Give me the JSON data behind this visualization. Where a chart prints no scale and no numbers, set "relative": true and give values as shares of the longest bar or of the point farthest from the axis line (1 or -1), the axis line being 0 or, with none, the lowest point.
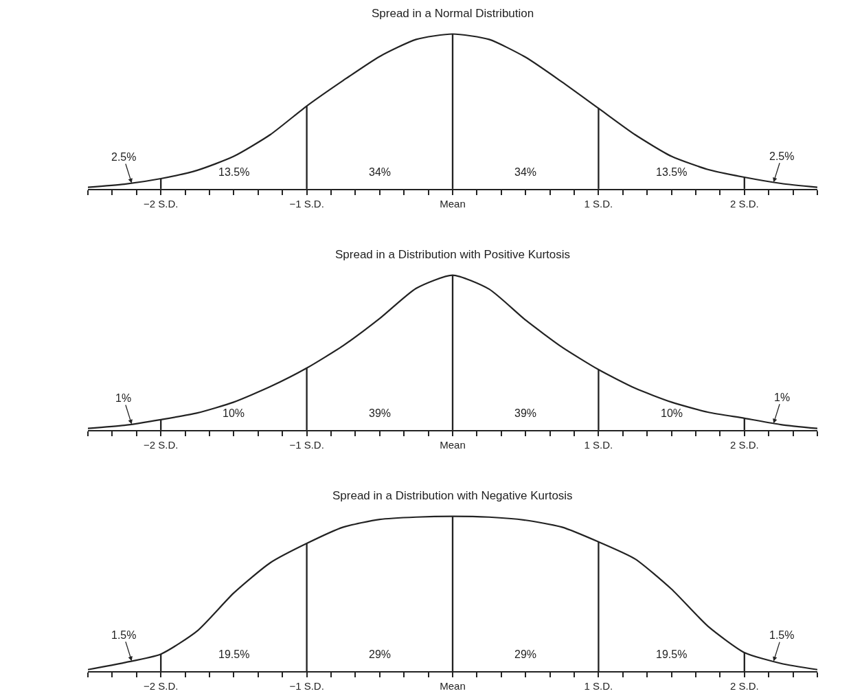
{
  "chart_data": [
    {
      "type": "line",
      "title": "Spread in a Normal Distribution",
      "relative": true,
      "series": [
        {
          "color": "#222222",
          "x": [
            -2.5,
            -2.25,
            -2,
            -1.75,
            -1.5,
            -1.25,
            -1,
            -0.75,
            -0.5,
            -0.25,
            0,
            0.25,
            0.5,
            0.75,
            1,
            1.25,
            1.5,
            1.75,
            2,
            2.25,
            2.5
          ],
          "values": [
            0.01,
            0.03,
            0.066,
            0.12,
            0.21,
            0.35,
            0.535,
            0.7,
            0.855,
            0.965,
            1,
            0.965,
            0.85,
            0.69,
            0.52,
            0.35,
            0.21,
            0.125,
            0.075,
            0.035,
            0.01
          ]
        },
        {
          "type": "bar",
          "color": "#222222",
          "x": [
            -2,
            -1,
            0,
            1,
            2
          ],
          "values": [
            0.066,
            0.535,
            1,
            0.52,
            0.075
          ]
        }
      ],
      "xlim": [
        -2.5,
        2.5
      ],
      "xticks": [
        {
          "value": -2.5,
          "label": null
        },
        {
          "value": -2.333,
          "label": null
        },
        {
          "value": -2.167,
          "label": null
        },
        {
          "value": -2,
          "label": "−2 S.D."
        },
        {
          "value": -1.833,
          "label": null
        },
        {
          "value": -1.667,
          "label": null
        },
        {
          "value": -1.5,
          "label": null
        },
        {
          "value": -1.333,
          "label": null
        },
        {
          "value": -1.167,
          "label": null
        },
        {
          "value": -1,
          "label": "−1 S.D."
        },
        {
          "value": -0.833,
          "label": null
        },
        {
          "value": -0.667,
          "label": null
        },
        {
          "value": -0.5,
          "label": null
        },
        {
          "value": -0.333,
          "label": null
        },
        {
          "value": -0.167,
          "label": null
        },
        {
          "value": 0,
          "label": "Mean"
        },
        {
          "value": 0.167,
          "label": null
        },
        {
          "value": 0.333,
          "label": null
        },
        {
          "value": 0.5,
          "label": null
        },
        {
          "value": 0.667,
          "label": null
        },
        {
          "value": 0.833,
          "label": null
        },
        {
          "value": 1,
          "label": "1 S.D."
        },
        {
          "value": 1.167,
          "label": null
        },
        {
          "value": 1.333,
          "label": null
        },
        {
          "value": 1.5,
          "label": null
        },
        {
          "value": 1.667,
          "label": null
        },
        {
          "value": 1.833,
          "label": null
        },
        {
          "value": 2,
          "label": "2 S.D."
        },
        {
          "value": 2.167,
          "label": null
        },
        {
          "value": 2.333,
          "label": null
        },
        {
          "value": 2.5,
          "label": null
        }
      ],
      "annotations": [
        "2.5%",
        "13.5%",
        "34%",
        "34%",
        "13.5%",
        "2.5%"
      ]
    },
    {
      "type": "line",
      "title": "Spread in a Distribution with Positive Kurtosis",
      "relative": true,
      "series": [
        {
          "color": "#222222",
          "x": [
            -2.5,
            -2.25,
            -2,
            -1.75,
            -1.5,
            -1.25,
            -1,
            -0.75,
            -0.5,
            -0.25,
            0,
            0.25,
            0.5,
            0.75,
            1,
            1.25,
            1.5,
            1.75,
            2,
            2.25,
            2.5
          ],
          "values": [
            0.01,
            0.03,
            0.067,
            0.11,
            0.18,
            0.28,
            0.4,
            0.545,
            0.72,
            0.915,
            1,
            0.91,
            0.71,
            0.535,
            0.39,
            0.27,
            0.18,
            0.115,
            0.076,
            0.035,
            0.01
          ]
        },
        {
          "type": "bar",
          "color": "#222222",
          "x": [
            -2,
            -1,
            0,
            1,
            2
          ],
          "values": [
            0.067,
            0.4,
            1,
            0.39,
            0.076
          ]
        }
      ],
      "xlim": [
        -2.5,
        2.5
      ],
      "xticks": [
        {
          "value": -2.5,
          "label": null
        },
        {
          "value": -2.333,
          "label": null
        },
        {
          "value": -2.167,
          "label": null
        },
        {
          "value": -2,
          "label": "−2 S.D."
        },
        {
          "value": -1.833,
          "label": null
        },
        {
          "value": -1.667,
          "label": null
        },
        {
          "value": -1.5,
          "label": null
        },
        {
          "value": -1.333,
          "label": null
        },
        {
          "value": -1.167,
          "label": null
        },
        {
          "value": -1,
          "label": "−1 S.D."
        },
        {
          "value": -0.833,
          "label": null
        },
        {
          "value": -0.667,
          "label": null
        },
        {
          "value": -0.5,
          "label": null
        },
        {
          "value": -0.333,
          "label": null
        },
        {
          "value": -0.167,
          "label": null
        },
        {
          "value": 0,
          "label": "Mean"
        },
        {
          "value": 0.167,
          "label": null
        },
        {
          "value": 0.333,
          "label": null
        },
        {
          "value": 0.5,
          "label": null
        },
        {
          "value": 0.667,
          "label": null
        },
        {
          "value": 0.833,
          "label": null
        },
        {
          "value": 1,
          "label": "1 S.D."
        },
        {
          "value": 1.167,
          "label": null
        },
        {
          "value": 1.333,
          "label": null
        },
        {
          "value": 1.5,
          "label": null
        },
        {
          "value": 1.667,
          "label": null
        },
        {
          "value": 1.833,
          "label": null
        },
        {
          "value": 2,
          "label": "2 S.D."
        },
        {
          "value": 2.167,
          "label": null
        },
        {
          "value": 2.333,
          "label": null
        },
        {
          "value": 2.5,
          "label": null
        }
      ],
      "annotations": [
        "1%",
        "10%",
        "39%",
        "39%",
        "10%",
        "1%"
      ]
    },
    {
      "type": "line",
      "title": "Spread in a Distribution with Negative Kurtosis",
      "relative": true,
      "series": [
        {
          "color": "#222222",
          "x": [
            -2.5,
            -2.25,
            -2,
            -1.75,
            -1.5,
            -1.25,
            -1,
            -0.75,
            -0.5,
            -0.25,
            0,
            0.25,
            0.5,
            0.75,
            1,
            1.25,
            1.5,
            1.75,
            2,
            2.25,
            2.5
          ],
          "values": [
            0.01,
            0.055,
            0.11,
            0.26,
            0.505,
            0.7,
            0.825,
            0.93,
            0.98,
            0.995,
            1,
            0.995,
            0.975,
            0.93,
            0.835,
            0.725,
            0.53,
            0.29,
            0.12,
            0.05,
            0.01
          ]
        },
        {
          "type": "bar",
          "color": "#222222",
          "x": [
            -2,
            -1,
            0,
            1,
            2
          ],
          "values": [
            0.11,
            0.825,
            1,
            0.835,
            0.12
          ]
        }
      ],
      "xlim": [
        -2.5,
        2.5
      ],
      "xticks": [
        {
          "value": -2.5,
          "label": null
        },
        {
          "value": -2.333,
          "label": null
        },
        {
          "value": -2.167,
          "label": null
        },
        {
          "value": -2,
          "label": "−2 S.D."
        },
        {
          "value": -1.833,
          "label": null
        },
        {
          "value": -1.667,
          "label": null
        },
        {
          "value": -1.5,
          "label": null
        },
        {
          "value": -1.333,
          "label": null
        },
        {
          "value": -1.167,
          "label": null
        },
        {
          "value": -1,
          "label": "−1 S.D."
        },
        {
          "value": -0.833,
          "label": null
        },
        {
          "value": -0.667,
          "label": null
        },
        {
          "value": -0.5,
          "label": null
        },
        {
          "value": -0.333,
          "label": null
        },
        {
          "value": -0.167,
          "label": null
        },
        {
          "value": 0,
          "label": "Mean"
        },
        {
          "value": 0.167,
          "label": null
        },
        {
          "value": 0.333,
          "label": null
        },
        {
          "value": 0.5,
          "label": null
        },
        {
          "value": 0.667,
          "label": null
        },
        {
          "value": 0.833,
          "label": null
        },
        {
          "value": 1,
          "label": "1 S.D."
        },
        {
          "value": 1.167,
          "label": null
        },
        {
          "value": 1.333,
          "label": null
        },
        {
          "value": 1.5,
          "label": null
        },
        {
          "value": 1.667,
          "label": null
        },
        {
          "value": 1.833,
          "label": null
        },
        {
          "value": 2,
          "label": "2 S.D."
        },
        {
          "value": 2.167,
          "label": null
        },
        {
          "value": 2.333,
          "label": null
        },
        {
          "value": 2.5,
          "label": null
        }
      ],
      "annotations": [
        "1.5%",
        "19.5%",
        "29%",
        "29%",
        "19.5%",
        "1.5%"
      ]
    }
  ]
}
